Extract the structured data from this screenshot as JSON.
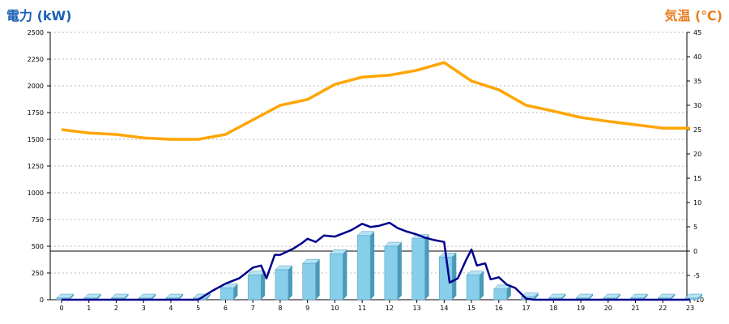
{
  "chart_data": {
    "type": "bar+line",
    "left_axis": {
      "label": "電力 (kW)",
      "min": 0,
      "max": 2500,
      "ticks": [
        0,
        250,
        500,
        750,
        1000,
        1250,
        1500,
        1750,
        2000,
        2250,
        2500
      ]
    },
    "right_axis": {
      "label": "気温 (℃)",
      "min": -10,
      "max": 45,
      "ticks": [
        -10,
        -5,
        0,
        5,
        10,
        15,
        20,
        25,
        30,
        35,
        40,
        45
      ]
    },
    "x_ticks": [
      "0",
      "1",
      "2",
      "3",
      "4",
      "5",
      "6",
      "7",
      "8",
      "9",
      "10",
      "11",
      "12",
      "13",
      "14",
      "15",
      "16",
      "17",
      "18",
      "19",
      "20",
      "21",
      "22",
      "23"
    ],
    "grid": true,
    "reference_line": {
      "axis": "right",
      "value": 0
    },
    "colors": {
      "bars": "#87ceeb",
      "bars_dark": "#4a9ab8",
      "power_line": "#00008b",
      "temp_line": "#ffa500",
      "left_title": "#1a5fb4",
      "right_title": "#e87d1e"
    },
    "series": [
      {
        "kind": "bar",
        "axis": "left",
        "values": [
          10,
          10,
          10,
          10,
          10,
          0,
          110,
          230,
          280,
          340,
          430,
          600,
          500,
          570,
          400,
          230,
          100,
          25,
          10,
          10,
          10,
          10,
          10,
          10
        ]
      },
      {
        "kind": "line",
        "axis": "left",
        "x": [
          0,
          1,
          2,
          3,
          4,
          5,
          5.5,
          6,
          6.5,
          7,
          7.3,
          7.5,
          7.8,
          8,
          8.5,
          8.8,
          9,
          9.3,
          9.6,
          10,
          10.3,
          10.6,
          11,
          11.3,
          11.6,
          12,
          12.3,
          12.6,
          13,
          13.3,
          13.6,
          14,
          14.2,
          14.5,
          14.8,
          15,
          15.2,
          15.5,
          15.7,
          16,
          16.3,
          16.6,
          17,
          17.3,
          18,
          19,
          20,
          21,
          22,
          23
        ],
        "values": [
          0,
          0,
          0,
          0,
          0,
          0,
          80,
          150,
          200,
          300,
          320,
          200,
          420,
          420,
          480,
          530,
          570,
          540,
          600,
          590,
          620,
          650,
          710,
          680,
          690,
          720,
          670,
          640,
          610,
          580,
          560,
          540,
          160,
          200,
          370,
          470,
          320,
          340,
          190,
          210,
          140,
          110,
          10,
          0,
          0,
          0,
          0,
          0,
          0,
          0
        ]
      },
      {
        "kind": "line",
        "axis": "right",
        "x": [
          0,
          1,
          2,
          3,
          4,
          5,
          6,
          7,
          8,
          9,
          10,
          11,
          12,
          13,
          14,
          15,
          16,
          17,
          18,
          19,
          20,
          21,
          22,
          23
        ],
        "values": [
          25,
          24.3,
          24,
          23.3,
          23,
          23,
          24,
          27,
          30,
          31.2,
          34.3,
          35.8,
          36.2,
          37.2,
          38.8,
          35,
          33.2,
          30,
          28.8,
          27.5,
          26.7,
          26,
          25.3,
          25.3
        ]
      }
    ]
  }
}
